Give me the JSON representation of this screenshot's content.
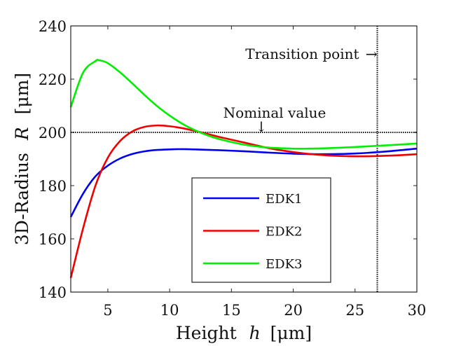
{
  "chart_data": {
    "type": "line",
    "title": "",
    "xlabel": "Height",
    "xlabel_var": "h",
    "xlabel_unit": "[μm]",
    "ylabel": "3D-Radius",
    "ylabel_var": "R",
    "ylabel_unit": "[μm]",
    "xlim": [
      2,
      30
    ],
    "ylim": [
      140,
      240
    ],
    "xticks": [
      5,
      10,
      15,
      20,
      25,
      30
    ],
    "yticks": [
      140,
      160,
      180,
      200,
      220,
      240
    ],
    "xtick_labels": [
      "5",
      "10",
      "15",
      "20",
      "25",
      "30"
    ],
    "ytick_labels": [
      "140",
      "160",
      "180",
      "200",
      "220",
      "240"
    ],
    "grid": false,
    "legend_position": "lower-center",
    "series": [
      {
        "name": "EDK1",
        "color": "#0000ee",
        "x": [
          2,
          3,
          4,
          5,
          6,
          7,
          8,
          9,
          10,
          11,
          12,
          14,
          16,
          18,
          20,
          22,
          24,
          26,
          28,
          30
        ],
        "y": [
          168.2,
          177.0,
          183.5,
          187.5,
          190.2,
          191.9,
          192.9,
          193.4,
          193.6,
          193.7,
          193.6,
          193.3,
          192.9,
          192.4,
          192.0,
          191.8,
          191.9,
          192.3,
          193.0,
          193.9
        ]
      },
      {
        "name": "EDK2",
        "color": "#ee0000",
        "x": [
          2,
          3,
          4,
          5,
          6,
          7,
          8,
          9,
          10,
          11,
          12,
          13,
          14,
          16,
          18,
          20,
          22,
          24,
          25.7,
          28,
          30
        ],
        "y": [
          145.3,
          164.0,
          180.0,
          190.5,
          196.8,
          200.4,
          202.1,
          202.6,
          202.3,
          201.6,
          200.6,
          199.5,
          198.3,
          196.2,
          194.1,
          192.6,
          191.6,
          191.1,
          191.0,
          191.3,
          191.8
        ]
      },
      {
        "name": "EDK3",
        "color": "#00ee00",
        "x": [
          2,
          3,
          4,
          4.3,
          5,
          6,
          7,
          8,
          9,
          10,
          11,
          12,
          13,
          14,
          16,
          18,
          20,
          21.2,
          23,
          25,
          27,
          30
        ],
        "y": [
          209.5,
          222.5,
          226.8,
          227.1,
          226.0,
          222.5,
          218.3,
          213.9,
          209.8,
          206.3,
          203.3,
          200.9,
          199.0,
          197.5,
          195.4,
          194.3,
          193.9,
          193.9,
          194.1,
          194.5,
          195.0,
          195.8
        ]
      }
    ],
    "reference_lines": [
      {
        "type": "horizontal",
        "value": 200,
        "style": "dotted",
        "label": "Nominal value"
      },
      {
        "type": "vertical",
        "value": 26.8,
        "style": "dotted",
        "label": "Transition point"
      }
    ],
    "annotations": [
      {
        "text": "Transition point",
        "arrow": "→"
      },
      {
        "text": "Nominal value",
        "arrow": "↓"
      }
    ]
  }
}
